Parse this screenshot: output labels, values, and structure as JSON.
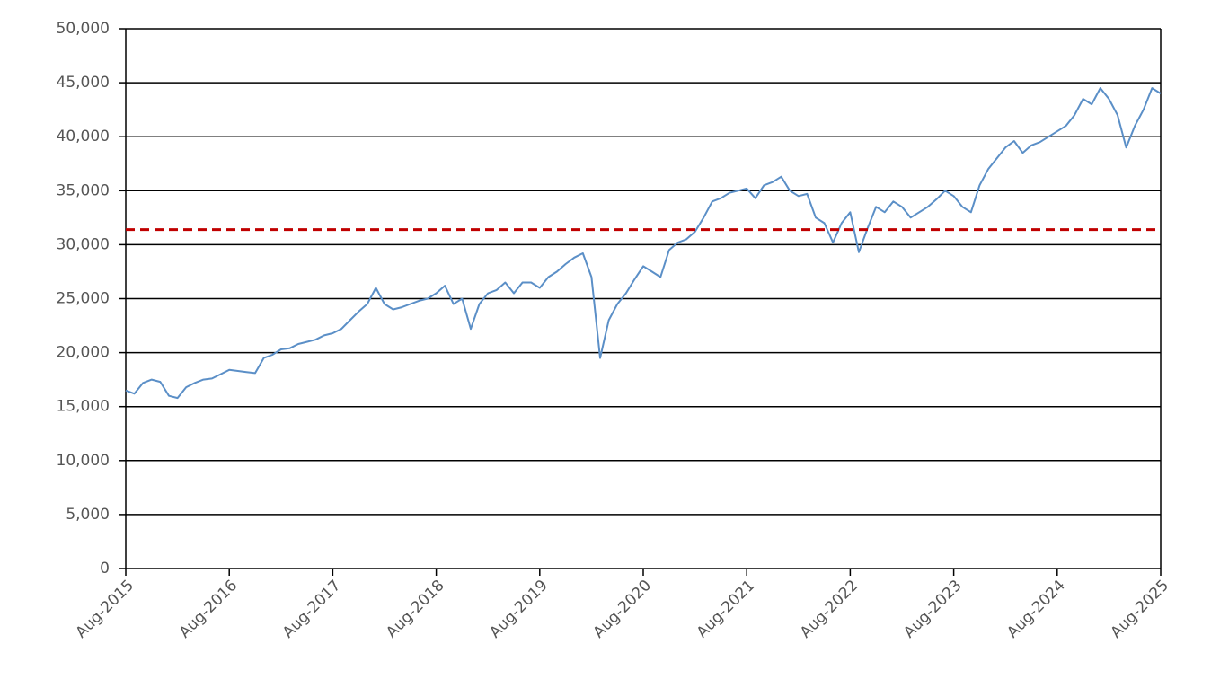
{
  "chart_data": {
    "type": "line",
    "x": [
      "2015-08",
      "2015-09",
      "2015-10",
      "2015-11",
      "2015-12",
      "2016-01",
      "2016-02",
      "2016-03",
      "2016-04",
      "2016-05",
      "2016-06",
      "2016-07",
      "2016-08",
      "2016-09",
      "2016-10",
      "2016-11",
      "2016-12",
      "2017-01",
      "2017-02",
      "2017-03",
      "2017-04",
      "2017-05",
      "2017-06",
      "2017-07",
      "2017-08",
      "2017-09",
      "2017-10",
      "2017-11",
      "2017-12",
      "2018-01",
      "2018-02",
      "2018-03",
      "2018-04",
      "2018-05",
      "2018-06",
      "2018-07",
      "2018-08",
      "2018-09",
      "2018-10",
      "2018-11",
      "2018-12",
      "2019-01",
      "2019-02",
      "2019-03",
      "2019-04",
      "2019-05",
      "2019-06",
      "2019-07",
      "2019-08",
      "2019-09",
      "2019-10",
      "2019-11",
      "2019-12",
      "2020-01",
      "2020-02",
      "2020-03",
      "2020-04",
      "2020-05",
      "2020-06",
      "2020-07",
      "2020-08",
      "2020-09",
      "2020-10",
      "2020-11",
      "2020-12",
      "2021-01",
      "2021-02",
      "2021-03",
      "2021-04",
      "2021-05",
      "2021-06",
      "2021-07",
      "2021-08",
      "2021-09",
      "2021-10",
      "2021-11",
      "2021-12",
      "2022-01",
      "2022-02",
      "2022-03",
      "2022-04",
      "2022-05",
      "2022-06",
      "2022-07",
      "2022-08",
      "2022-09",
      "2022-10",
      "2022-11",
      "2022-12",
      "2023-01",
      "2023-02",
      "2023-03",
      "2023-04",
      "2023-05",
      "2023-06",
      "2023-07",
      "2023-08",
      "2023-09",
      "2023-10",
      "2023-11",
      "2023-12",
      "2024-01",
      "2024-02",
      "2024-03",
      "2024-04",
      "2024-05",
      "2024-06",
      "2024-07",
      "2024-08",
      "2024-09",
      "2024-10",
      "2024-11",
      "2024-12",
      "2025-01",
      "2025-02",
      "2025-03",
      "2025-04",
      "2025-05",
      "2025-06",
      "2025-07",
      "2025-08"
    ],
    "series": [
      {
        "color": "#5b8fc7",
        "values": [
          16500,
          16200,
          17200,
          17500,
          17300,
          16000,
          15800,
          16800,
          17200,
          17500,
          17600,
          18000,
          18400,
          18300,
          18200,
          18100,
          19500,
          19800,
          20300,
          20400,
          20800,
          21000,
          21200,
          21600,
          21800,
          22200,
          23000,
          23800,
          24500,
          26000,
          24500,
          24000,
          24200,
          24500,
          24800,
          25000,
          25500,
          26200,
          24500,
          25000,
          22200,
          24500,
          25500,
          25800,
          26500,
          25500,
          26500,
          26500,
          26000,
          27000,
          27500,
          28200,
          28800,
          29200,
          27000,
          19500,
          23000,
          24500,
          25500,
          26800,
          28000,
          27500,
          27000,
          29500,
          30200,
          30500,
          31200,
          32500,
          34000,
          34300,
          34800,
          35000,
          35200,
          34300,
          35500,
          35800,
          36300,
          35000,
          34500,
          34700,
          32500,
          32000,
          30200,
          32000,
          33000,
          29300,
          31500,
          33500,
          33000,
          34000,
          33500,
          32500,
          33000,
          33500,
          34200,
          35000,
          34500,
          33500,
          33000,
          35500,
          37000,
          38000,
          39000,
          39600,
          38500,
          39200,
          39500,
          40000,
          40500,
          41000,
          42000,
          43500,
          43000,
          44500,
          43500,
          42000,
          39000,
          41000,
          42500,
          44500,
          44000
        ]
      }
    ],
    "reference_line": {
      "value": 31400,
      "color": "#c00000",
      "style": "dashed"
    },
    "xlim": [
      "2015-08",
      "2025-08"
    ],
    "xticks": [
      {
        "value": "2015-08",
        "label": "Aug-2015"
      },
      {
        "value": "2016-08",
        "label": "Aug-2016"
      },
      {
        "value": "2017-08",
        "label": "Aug-2017"
      },
      {
        "value": "2018-08",
        "label": "Aug-2018"
      },
      {
        "value": "2019-08",
        "label": "Aug-2019"
      },
      {
        "value": "2020-08",
        "label": "Aug-2020"
      },
      {
        "value": "2021-08",
        "label": "Aug-2021"
      },
      {
        "value": "2022-08",
        "label": "Aug-2022"
      },
      {
        "value": "2023-08",
        "label": "Aug-2023"
      },
      {
        "value": "2024-08",
        "label": "Aug-2024"
      },
      {
        "value": "2025-08",
        "label": "Aug-2025"
      }
    ],
    "ylim": [
      0,
      50000
    ],
    "yticks": [
      0,
      {
        "value": 5000,
        "label": "5,000"
      },
      {
        "value": 10000,
        "label": "10,000"
      },
      {
        "value": 15000,
        "label": "15,000"
      },
      {
        "value": 20000,
        "label": "20,000"
      },
      {
        "value": 25000,
        "label": "25,000"
      },
      {
        "value": 30000,
        "label": "30,000"
      },
      {
        "value": 35000,
        "label": "35,000"
      },
      {
        "value": 40000,
        "label": "40,000"
      },
      {
        "value": 45000,
        "label": "45,000"
      },
      {
        "value": 50000,
        "label": "50,000"
      }
    ],
    "grid": true
  }
}
